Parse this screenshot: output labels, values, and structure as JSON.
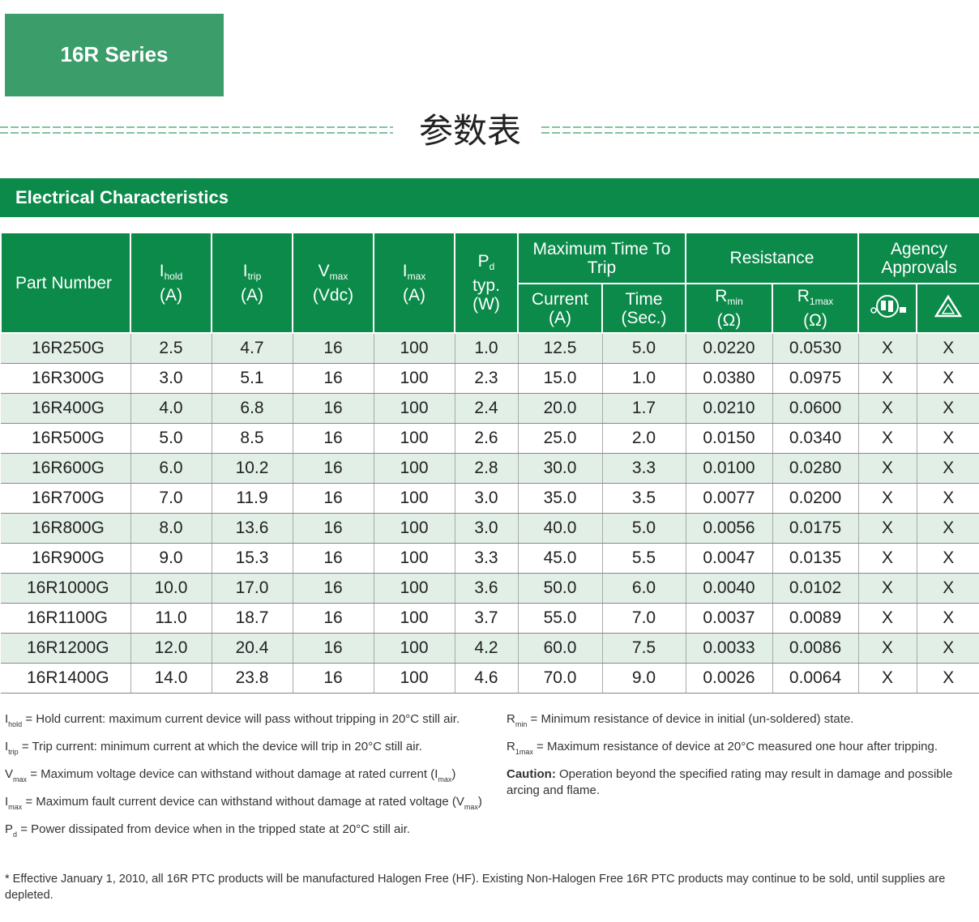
{
  "header": {
    "series": "16R Series",
    "title": "参数表",
    "section": "Electrical Characteristics"
  },
  "table": {
    "columns": [
      {
        "label": "Part Number"
      },
      {
        "symbol": "I",
        "sub": "hold",
        "lines": [
          "(A)"
        ]
      },
      {
        "symbol": "I",
        "sub": "trip",
        "lines": [
          "(A)"
        ]
      },
      {
        "symbol": "V",
        "sub": "max",
        "lines": [
          "(Vdc)"
        ]
      },
      {
        "symbol": "I",
        "sub": "max",
        "lines": [
          "(A)"
        ]
      },
      {
        "symbol": "P",
        "sub": "d",
        "lines": [
          "typ.",
          "(W)"
        ]
      }
    ],
    "groups": [
      {
        "label": "Maximum Time To Trip",
        "columns": [
          {
            "lines": [
              "Current",
              "(A)"
            ]
          },
          {
            "lines": [
              "Time",
              "(Sec.)"
            ]
          }
        ]
      },
      {
        "label": "Resistance",
        "columns": [
          {
            "symbol": "R",
            "sub": "min",
            "lines": [
              "(Ω)"
            ]
          },
          {
            "symbol": "R",
            "sub": "1max",
            "lines": [
              "(Ω)"
            ]
          }
        ]
      },
      {
        "label": "Agency Approvals"
      }
    ],
    "rows": [
      [
        "16R250G",
        "2.5",
        "4.7",
        "16",
        "100",
        "1.0",
        "12.5",
        "5.0",
        "0.0220",
        "0.0530",
        "X",
        "X"
      ],
      [
        "16R300G",
        "3.0",
        "5.1",
        "16",
        "100",
        "2.3",
        "15.0",
        "1.0",
        "0.0380",
        "0.0975",
        "X",
        "X"
      ],
      [
        "16R400G",
        "4.0",
        "6.8",
        "16",
        "100",
        "2.4",
        "20.0",
        "1.7",
        "0.0210",
        "0.0600",
        "X",
        "X"
      ],
      [
        "16R500G",
        "5.0",
        "8.5",
        "16",
        "100",
        "2.6",
        "25.0",
        "2.0",
        "0.0150",
        "0.0340",
        "X",
        "X"
      ],
      [
        "16R600G",
        "6.0",
        "10.2",
        "16",
        "100",
        "2.8",
        "30.0",
        "3.3",
        "0.0100",
        "0.0280",
        "X",
        "X"
      ],
      [
        "16R700G",
        "7.0",
        "11.9",
        "16",
        "100",
        "3.0",
        "35.0",
        "3.5",
        "0.0077",
        "0.0200",
        "X",
        "X"
      ],
      [
        "16R800G",
        "8.0",
        "13.6",
        "16",
        "100",
        "3.0",
        "40.0",
        "5.0",
        "0.0056",
        "0.0175",
        "X",
        "X"
      ],
      [
        "16R900G",
        "9.0",
        "15.3",
        "16",
        "100",
        "3.3",
        "45.0",
        "5.5",
        "0.0047",
        "0.0135",
        "X",
        "X"
      ],
      [
        "16R1000G",
        "10.0",
        "17.0",
        "16",
        "100",
        "3.6",
        "50.0",
        "6.0",
        "0.0040",
        "0.0102",
        "X",
        "X"
      ],
      [
        "16R1100G",
        "11.0",
        "18.7",
        "16",
        "100",
        "3.7",
        "55.0",
        "7.0",
        "0.0037",
        "0.0089",
        "X",
        "X"
      ],
      [
        "16R1200G",
        "12.0",
        "20.4",
        "16",
        "100",
        "4.2",
        "60.0",
        "7.5",
        "0.0033",
        "0.0086",
        "X",
        "X"
      ],
      [
        "16R1400G",
        "14.0",
        "23.8",
        "16",
        "100",
        "4.6",
        "70.0",
        "9.0",
        "0.0026",
        "0.0064",
        "X",
        "X"
      ]
    ]
  },
  "notes": {
    "left": [
      [
        "I",
        "hold",
        " = Hold current: maximum current device will pass without tripping in 20°C still air."
      ],
      [
        "I",
        "trip",
        " = Trip current: minimum current at which the device will trip in 20°C still air."
      ],
      [
        "V",
        "max",
        " = Maximum voltage device can withstand without damage at rated current (I",
        "max",
        ")"
      ],
      [
        "I",
        "max",
        " = Maximum fault current device can withstand without damage at rated voltage (V",
        "max",
        ")"
      ],
      [
        "P",
        "d",
        " = Power dissipated from device when in the tripped state at 20°C still air."
      ]
    ],
    "right": [
      [
        "R",
        "min",
        " = Minimum resistance of device in initial (un-soldered) state."
      ],
      [
        "R",
        "1max",
        " = Maximum resistance of device at 20°C measured one hour after tripping."
      ]
    ],
    "caution_label": "Caution:",
    "caution": " Operation beyond the specified rating may result in damage and possible arcing and flame.",
    "footer": "* Effective January 1, 2010, all 16R PTC products will be manufactured Halogen Free (HF). Existing Non-Halogen Free 16R PTC products may continue to be sold, until supplies are depleted."
  }
}
